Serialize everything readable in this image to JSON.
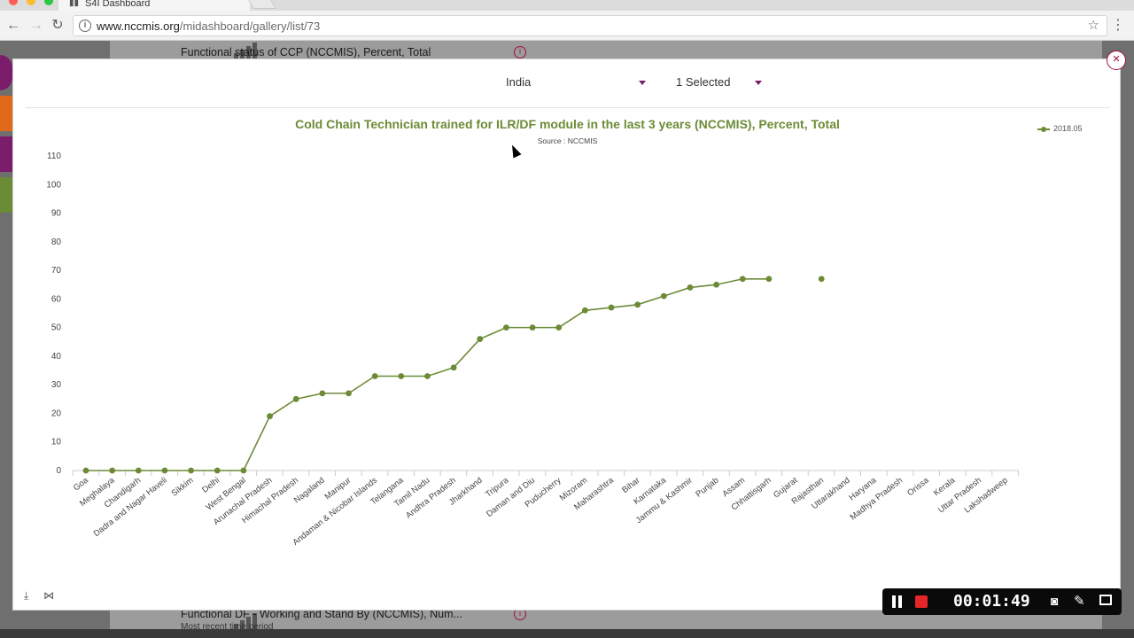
{
  "browser": {
    "tab_title": "S4I Dashboard",
    "url_host": "www.nccmis.org",
    "url_path": "/midashboard/gallery/list/73"
  },
  "background": {
    "top_title": "Functional status of CCP (NCCMIS), Percent, Total",
    "bottom_title": "Functional DF - Working and Stand By (NCCMIS), Num...",
    "bottom_sub": "Most recent time period"
  },
  "modal": {
    "area_selector": "India",
    "period_selector": "1 Selected",
    "close_label": "×"
  },
  "recorder": {
    "time": "00:01:49"
  },
  "chart_data": {
    "type": "line",
    "title": "Cold Chain Technician trained for ILR/DF module in the last 3 years (NCCMIS), Percent, Total",
    "subtitle": "Source : NCCMIS",
    "xlabel": "",
    "ylabel": "",
    "ylim": [
      0,
      110
    ],
    "yticks": [
      0,
      10,
      20,
      30,
      40,
      50,
      60,
      70,
      80,
      90,
      100,
      110
    ],
    "grid": false,
    "legend_position": "top-right",
    "color": "#6c8b36",
    "categories": [
      "Goa",
      "Meghalaya",
      "Chandigarh",
      "Dadra and Nagar Haveli",
      "Sikkim",
      "Delhi",
      "West Bengal",
      "Arunachal Pradesh",
      "Himachal Pradesh",
      "Nagaland",
      "Manipur",
      "Andaman & Nicobar Islands",
      "Telangana",
      "Tamil Nadu",
      "Andhra Pradesh",
      "Jharkhand",
      "Tripura",
      "Daman and Diu",
      "Puducherry",
      "Mizoram",
      "Maharashtra",
      "Bihar",
      "Karnataka",
      "Jammu & Kashmir",
      "Punjab",
      "Assam",
      "Chhattisgarh",
      "Gujarat",
      "Rajasthan",
      "Uttarakhand",
      "Haryana",
      "Madhya Pradesh",
      "Orissa",
      "Kerala",
      "Uttar Pradesh",
      "Lakshadweep"
    ],
    "series": [
      {
        "name": "2018.05",
        "values": [
          0,
          0,
          0,
          0,
          0,
          0,
          0,
          19,
          25,
          27,
          27,
          33,
          33,
          33,
          36,
          46,
          50,
          50,
          50,
          56,
          57,
          58,
          61,
          64,
          65,
          67,
          67,
          null,
          67,
          null,
          null,
          null,
          null,
          null,
          null,
          null
        ]
      }
    ]
  }
}
